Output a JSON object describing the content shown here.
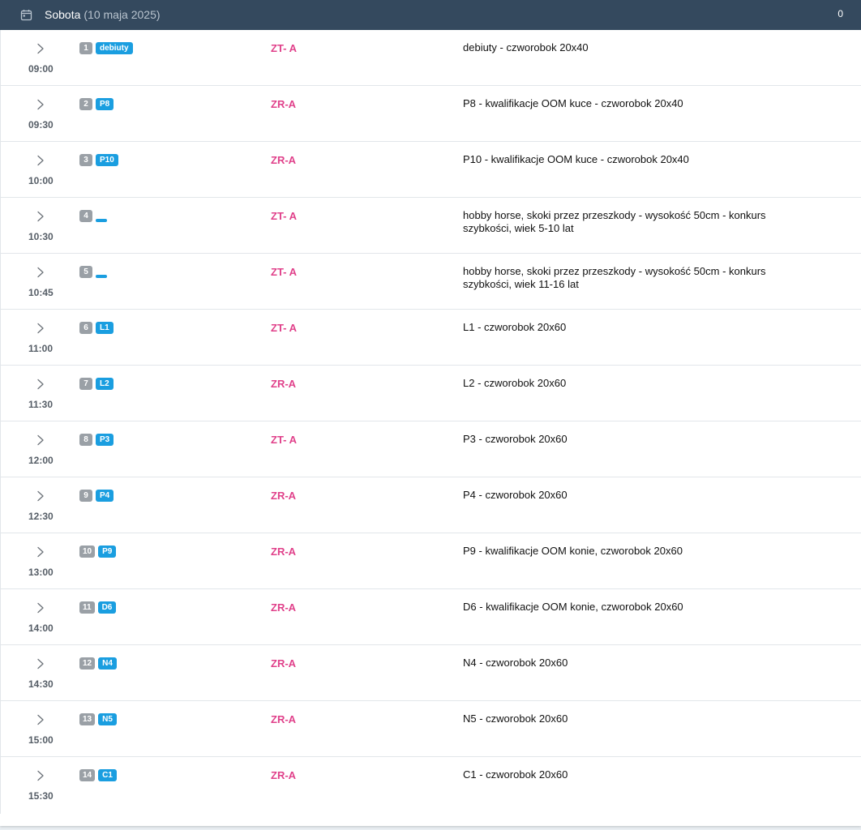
{
  "header": {
    "day": "Sobota",
    "date": "(10 maja 2025)",
    "count": "0",
    "icon": "calendar-icon"
  },
  "colors": {
    "header_bg": "#34495e",
    "number_badge": "#9aa0a6",
    "class_badge": "#1a9ee0",
    "judges_text": "#e0408a"
  },
  "rows": [
    {
      "time": "09:00",
      "number": "1",
      "cls": "debiuty",
      "judges": "ZT- A",
      "desc": "debiuty - czworobok 20x40"
    },
    {
      "time": "09:30",
      "number": "2",
      "cls": "P8",
      "judges": "ZR-A",
      "desc": "P8 - kwalifikacje OOM kuce - czworobok 20x40"
    },
    {
      "time": "10:00",
      "number": "3",
      "cls": "P10",
      "judges": "ZR-A",
      "desc": "P10 - kwalifikacje OOM kuce - czworobok 20x40"
    },
    {
      "time": "10:30",
      "number": "4",
      "cls": "",
      "judges": "ZT- A",
      "desc": "hobby horse, skoki przez przeszkody - wysokość 50cm - konkurs szybkości, wiek 5-10 lat"
    },
    {
      "time": "10:45",
      "number": "5",
      "cls": "",
      "judges": "ZT- A",
      "desc": "hobby horse, skoki przez przeszkody - wysokość 50cm - konkurs szybkości, wiek 11-16 lat"
    },
    {
      "time": "11:00",
      "number": "6",
      "cls": "L1",
      "judges": "ZT- A",
      "desc": "L1 - czworobok 20x60"
    },
    {
      "time": "11:30",
      "number": "7",
      "cls": "L2",
      "judges": "ZR-A",
      "desc": "L2 - czworobok 20x60"
    },
    {
      "time": "12:00",
      "number": "8",
      "cls": "P3",
      "judges": "ZT- A",
      "desc": "P3 - czworobok 20x60"
    },
    {
      "time": "12:30",
      "number": "9",
      "cls": "P4",
      "judges": "ZR-A",
      "desc": "P4 - czworobok 20x60"
    },
    {
      "time": "13:00",
      "number": "10",
      "cls": "P9",
      "judges": "ZR-A",
      "desc": "P9 - kwalifikacje OOM konie, czworobok 20x60"
    },
    {
      "time": "14:00",
      "number": "11",
      "cls": "D6",
      "judges": "ZR-A",
      "desc": "D6 - kwalifikacje OOM konie, czworobok 20x60"
    },
    {
      "time": "14:30",
      "number": "12",
      "cls": "N4",
      "judges": "ZR-A",
      "desc": "N4 - czworobok 20x60"
    },
    {
      "time": "15:00",
      "number": "13",
      "cls": "N5",
      "judges": "ZR-A",
      "desc": "N5 - czworobok 20x60"
    },
    {
      "time": "15:30",
      "number": "14",
      "cls": "C1",
      "judges": "ZR-A",
      "desc": "C1 - czworobok 20x60"
    }
  ]
}
